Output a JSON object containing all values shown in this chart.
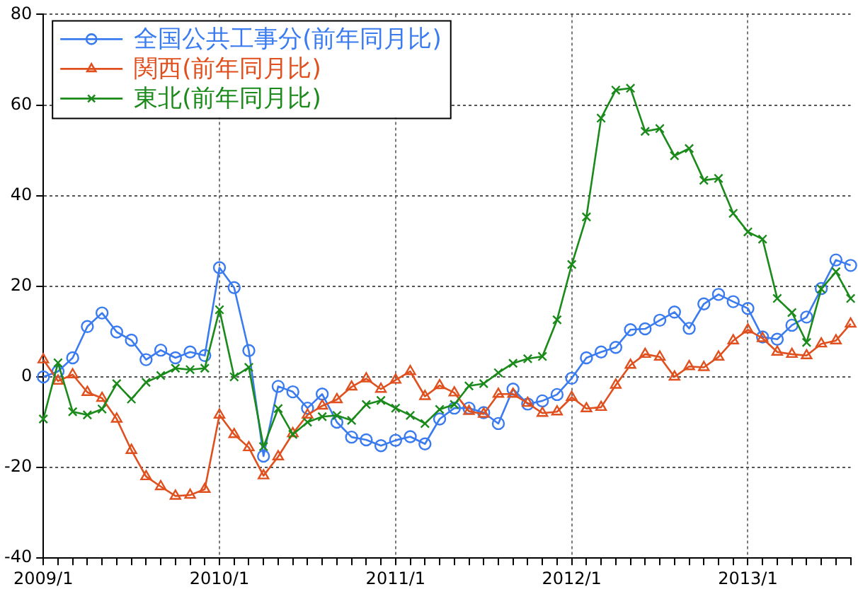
{
  "chart_data": {
    "type": "line",
    "categories": [
      "2009/1",
      null,
      null,
      null,
      null,
      null,
      null,
      null,
      null,
      null,
      null,
      null,
      "2010/1",
      null,
      null,
      null,
      null,
      null,
      null,
      null,
      null,
      null,
      null,
      null,
      "2011/1",
      null,
      null,
      null,
      null,
      null,
      null,
      null,
      null,
      null,
      null,
      null,
      "2012/1",
      null,
      null,
      null,
      null,
      null,
      null,
      null,
      null,
      null,
      null,
      null,
      "2013/1",
      null,
      null,
      null,
      null,
      null,
      null,
      null
    ],
    "series": [
      {
        "name": "全国公共工事分(前年同月比)",
        "color": "#3a7bf0",
        "marker": "circle",
        "values": [
          0,
          1.2,
          4.2,
          11.1,
          14.1,
          9.9,
          8.1,
          3.8,
          5.9,
          4.2,
          5.5,
          4.7,
          24.1,
          19.7,
          5.8,
          -17.5,
          -2.1,
          -3.3,
          -6.9,
          -3.8,
          -10,
          -13.3,
          -13.9,
          -15.2,
          -14,
          -13.2,
          -14.8,
          -9.3,
          -6.9,
          -6.9,
          -7.9,
          -10.3,
          -2.7,
          -6,
          -5.3,
          -3.9,
          -0.3,
          4.2,
          5.5,
          6.5,
          10.4,
          10.6,
          12.5,
          14.3,
          10.7,
          16.1,
          18.2,
          16.6,
          15.1,
          8.8,
          8.3,
          11.4,
          13.2,
          19.5,
          25.8,
          24.6
        ]
      },
      {
        "name": "関西(前年同月比)",
        "color": "#e0501e",
        "marker": "triangle",
        "values": [
          3.8,
          -0.9,
          0.5,
          -3.4,
          -4.7,
          -9.3,
          -16.2,
          -22,
          -24.2,
          -26.3,
          -26.1,
          -24.8,
          -8.4,
          -12.7,
          -15.6,
          -21.8,
          -17.6,
          -12.5,
          -8.4,
          -6.4,
          -5,
          -2.2,
          -0.4,
          -2.7,
          -0.7,
          1.2,
          -4.3,
          -1.9,
          -3.5,
          -7.6,
          -8.2,
          -3.8,
          -3.8,
          -5.8,
          -8,
          -7.7,
          -4.5,
          -7,
          -6.7,
          -1.8,
          2.6,
          5,
          4.4,
          0,
          2.3,
          2.1,
          4.4,
          8,
          10.4,
          8.5,
          5.5,
          5,
          4.7,
          7.3,
          8,
          11.7
        ]
      },
      {
        "name": "東北(前年同月比)",
        "color": "#1a8a1a",
        "marker": "cross",
        "values": [
          -9.3,
          3.1,
          -7.7,
          -8.4,
          -7.1,
          -1.5,
          -4.9,
          -1.2,
          0.3,
          1.9,
          1.6,
          1.9,
          14.8,
          0,
          2.1,
          -15.4,
          -7,
          -12.7,
          -10,
          -8.8,
          -8.5,
          -9.6,
          -6.1,
          -5.2,
          -6.9,
          -8.5,
          -10.3,
          -7.2,
          -6.1,
          -2,
          -1.5,
          0.9,
          3,
          4,
          4.5,
          12.6,
          24.8,
          35.3,
          57.1,
          63.3,
          63.7,
          54.2,
          54.8,
          48.8,
          50.4,
          43.4,
          43.8,
          36.1,
          32,
          30.4,
          17.3,
          14.2,
          7.6,
          19.4,
          23.2,
          17.3
        ]
      }
    ],
    "ylim": [
      -40,
      80
    ],
    "yticks": [
      -40,
      -20,
      0,
      20,
      40,
      60,
      80
    ],
    "grid": true,
    "legend": "top left",
    "line_style": "solid"
  }
}
